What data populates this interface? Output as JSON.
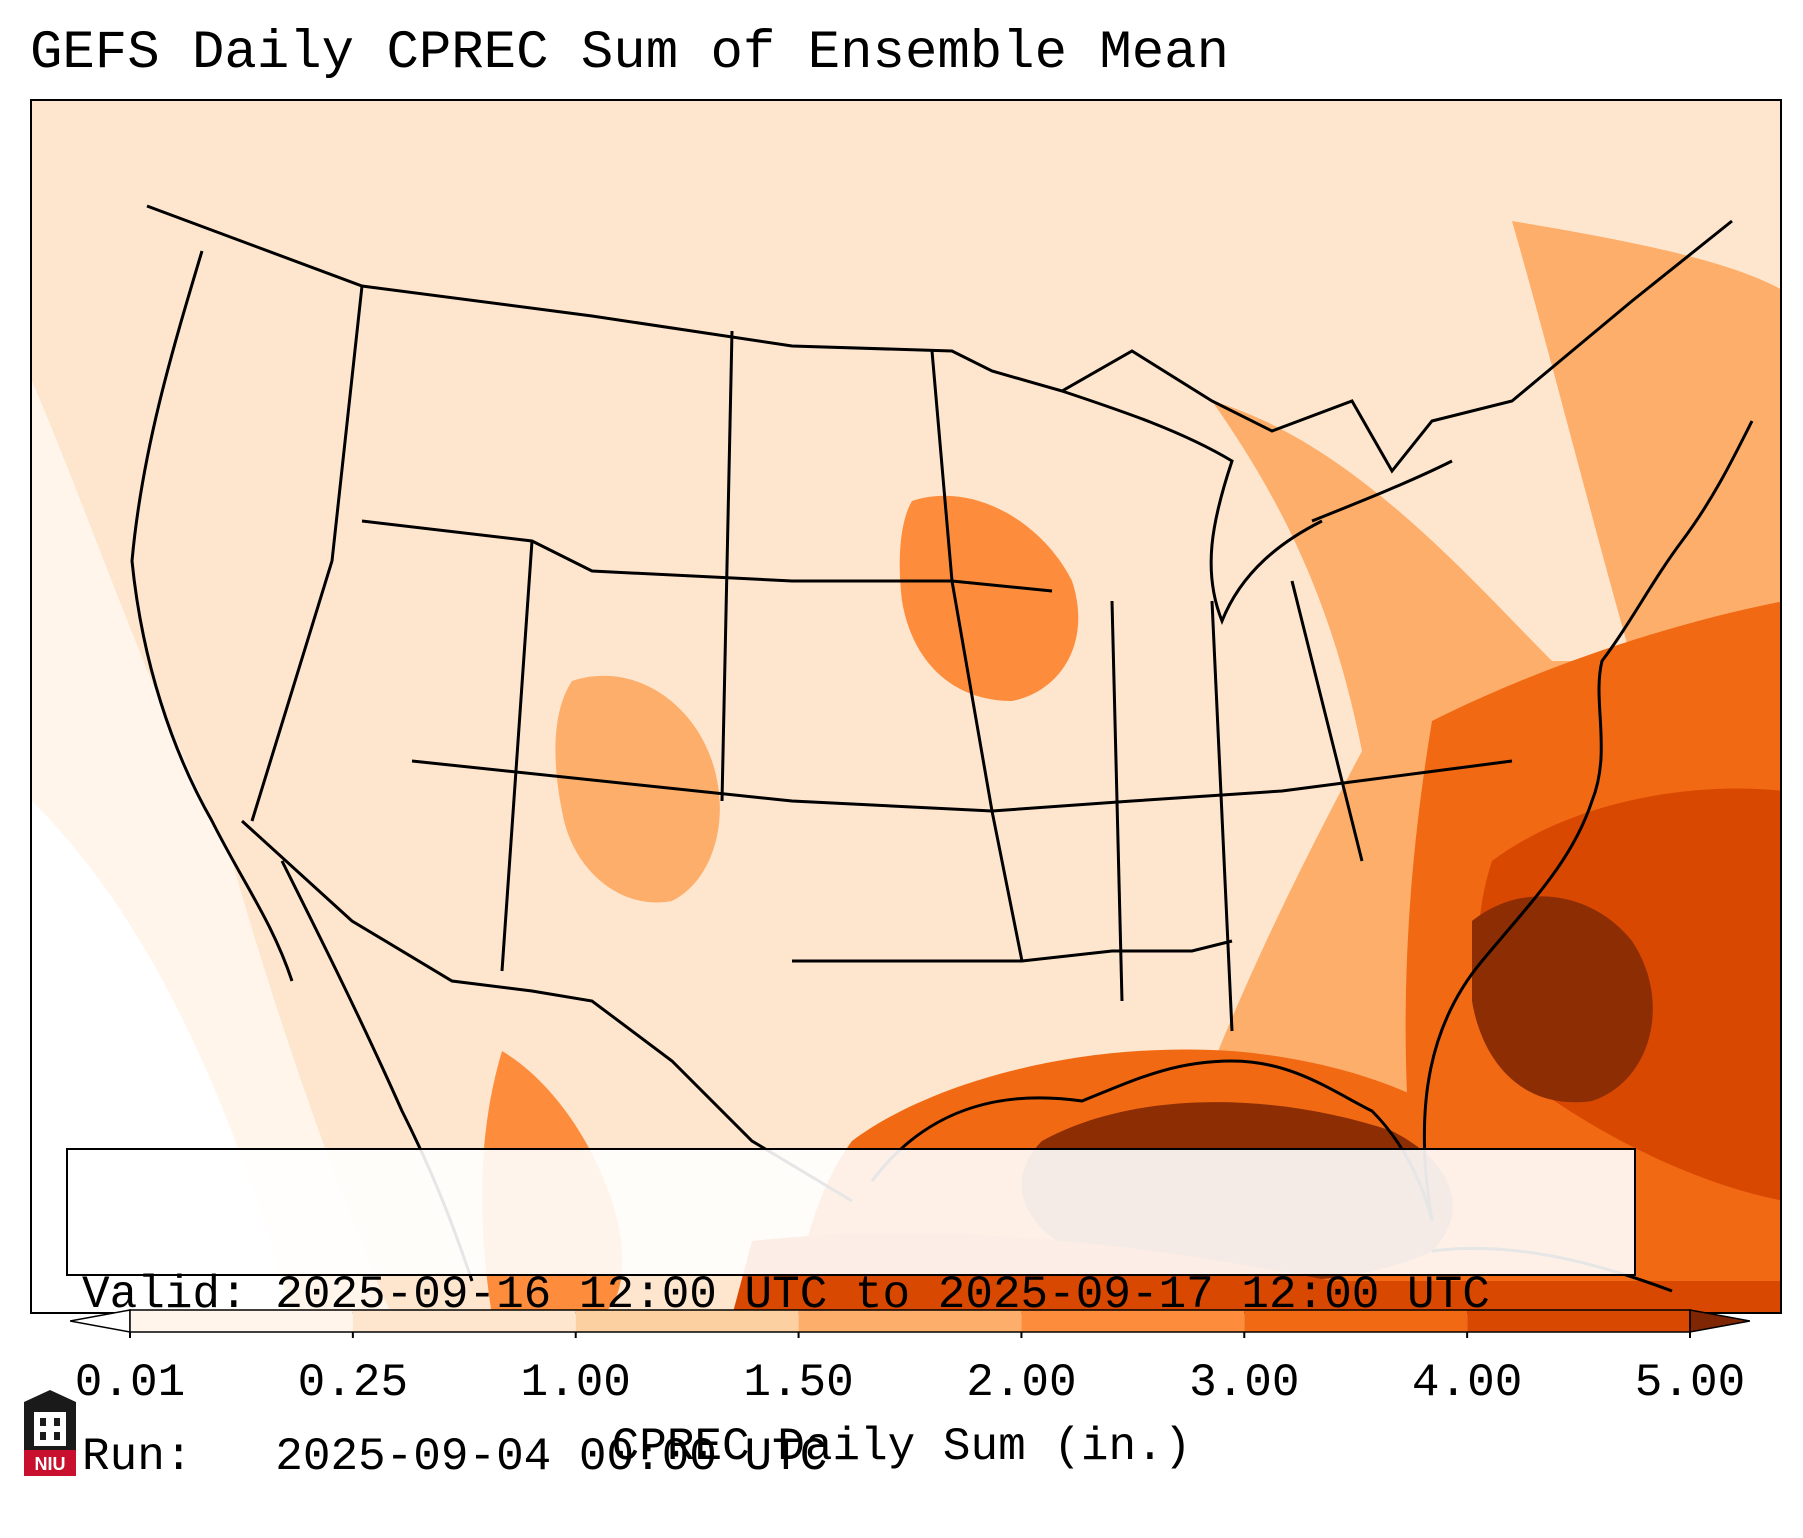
{
  "title": "GEFS Daily CPREC Sum of Ensemble Mean",
  "validity": {
    "valid_line": "Valid: 2025-09-16 12:00 UTC to 2025-09-17 12:00 UTC",
    "run_line": "Run:   2025-09-04 00:00 UTC"
  },
  "colorbar": {
    "label": "CPREC Daily Sum (in.)",
    "ticks": [
      "0.01",
      "0.25",
      "1.00",
      "1.50",
      "2.00",
      "3.00",
      "4.00",
      "5.00"
    ],
    "colors": [
      "#fff5eb",
      "#fee6ce",
      "#fdd0a2",
      "#fdae6b",
      "#fd8d3c",
      "#f16913",
      "#d94801",
      "#8c2d04"
    ],
    "under_color": "#ffffff",
    "over_color": "#7f2704"
  },
  "map": {
    "region": "CONUS",
    "variable": "CPREC",
    "summary": "Heaviest totals over the Gulf of Mexico, Florida, and the western Atlantic off the Southeast coast; light amounts across most of the central and western US"
  },
  "logo": {
    "text": "NIU",
    "color": "#c8102e"
  }
}
